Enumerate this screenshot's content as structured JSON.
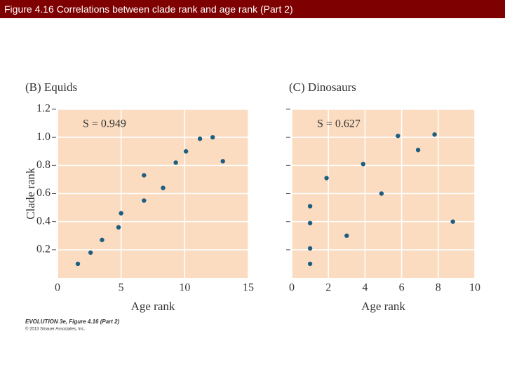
{
  "slide_title": "Figure 4.16  Correlations between clade rank and age rank (Part 2)",
  "chart_data": [
    {
      "type": "scatter",
      "title": "(B) Equids",
      "annotation": "S = 0.949",
      "x_label": "Age rank",
      "y_label": "Clade rank",
      "x": [
        1.6,
        2.6,
        3.5,
        5.0,
        4.8,
        6.8,
        6.8,
        8.3,
        9.3,
        10.1,
        11.2,
        12.2,
        13.0
      ],
      "values": [
        0.1,
        0.18,
        0.27,
        0.46,
        0.36,
        0.55,
        0.73,
        0.64,
        0.82,
        0.9,
        0.99,
        1.0,
        0.83
      ],
      "color": "#1d5e80",
      "background": "#fbdcc0",
      "xlim": [
        0,
        15
      ],
      "xticks": [
        0,
        5,
        10,
        15
      ],
      "ylim": [
        0,
        1.2
      ],
      "yticks": [
        0.2,
        0.4,
        0.6,
        0.8,
        {
          "value": 1,
          "label": "1.0"
        },
        1.2
      ],
      "grid": true,
      "ytick_labels": true
    },
    {
      "type": "scatter",
      "title": "(C) Dinosaurs",
      "annotation": "S = 0.627",
      "x_label": "Age rank",
      "x": [
        1.0,
        1.0,
        1.0,
        1.0,
        1.9,
        3.0,
        3.9,
        4.9,
        5.8,
        6.9,
        7.8,
        8.8
      ],
      "values": [
        0.1,
        0.21,
        0.39,
        0.51,
        0.71,
        0.3,
        0.81,
        0.6,
        1.01,
        0.91,
        1.02,
        0.4
      ],
      "color": "#1d5e80",
      "background": "#fbdcc0",
      "xlim": [
        0,
        10
      ],
      "xticks": [
        0,
        2,
        4,
        6,
        8,
        10
      ],
      "ylim": [
        0,
        1.2
      ],
      "yticks": [
        0.2,
        0.4,
        0.6,
        0.8,
        1,
        1.2
      ],
      "grid": true,
      "ytick_labels": false
    }
  ],
  "credit": {
    "line1": "EVOLUTION 3e, Figure 4.16 (Part 2)",
    "line2": "© 2013 Sinauer Associates, Inc."
  }
}
